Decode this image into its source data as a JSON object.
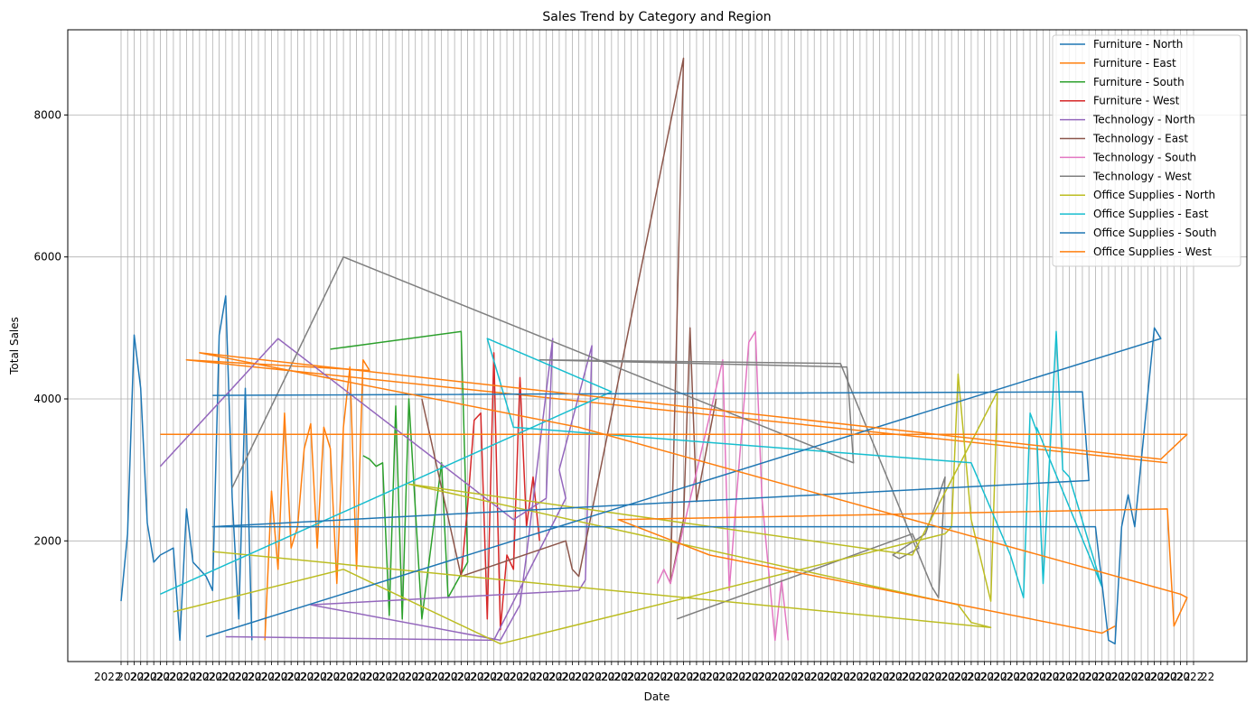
{
  "chart_data": {
    "type": "line",
    "title": "Sales Trend by Category and Region",
    "xlabel": "Date",
    "ylabel": "Total Sales",
    "x_axis": "categorical dates, roughly 165 distinct dates; tick labels overlap and are illegible",
    "x_index_range": [
      0,
      164
    ],
    "ylim": [
      300,
      9200
    ],
    "yticks": [
      2000,
      4000,
      6000,
      8000
    ],
    "grid": true,
    "legend_position": "top-right",
    "legend": [
      "Furniture - North",
      "Furniture - East",
      "Furniture - South",
      "Furniture - West",
      "Technology - North",
      "Technology - East",
      "Technology - South",
      "Technology - West",
      "Office Supplies - North",
      "Office Supplies - East",
      "Office Supplies - South",
      "Office Supplies - West"
    ],
    "x_tick_fragments": [
      "2022",
      "22"
    ],
    "series": [
      {
        "name": "Furniture - North",
        "color": "#1f77b4",
        "points": [
          [
            0,
            1150
          ],
          [
            1,
            2100
          ],
          [
            2,
            4900
          ],
          [
            3,
            4150
          ],
          [
            4,
            2250
          ],
          [
            5,
            1700
          ],
          [
            6,
            1800
          ],
          [
            7,
            1850
          ],
          [
            8,
            1900
          ],
          [
            9,
            600
          ],
          [
            10,
            2450
          ],
          [
            11,
            1700
          ],
          [
            12,
            1600
          ],
          [
            13,
            1500
          ],
          [
            14,
            1300
          ],
          [
            15,
            4900
          ],
          [
            16,
            5450
          ],
          [
            17,
            2600
          ],
          [
            18,
            900
          ],
          [
            19,
            4150
          ],
          [
            20,
            600
          ]
        ]
      },
      {
        "name": "Furniture - East",
        "color": "#ff7f0e",
        "points": [
          [
            22,
            600
          ],
          [
            23,
            2700
          ],
          [
            24,
            1600
          ],
          [
            25,
            3800
          ],
          [
            26,
            1900
          ],
          [
            27,
            2200
          ],
          [
            28,
            3300
          ],
          [
            29,
            3650
          ],
          [
            30,
            1900
          ],
          [
            31,
            3600
          ],
          [
            32,
            3300
          ],
          [
            33,
            1400
          ],
          [
            34,
            3600
          ],
          [
            35,
            4450
          ],
          [
            36,
            1600
          ],
          [
            37,
            4550
          ],
          [
            38,
            4400
          ],
          [
            10,
            4550
          ],
          [
            160,
            3100
          ]
        ]
      },
      {
        "name": "Furniture - South",
        "color": "#2ca02c",
        "points": [
          [
            32,
            4700
          ],
          [
            52,
            4950
          ],
          [
            53,
            1700
          ],
          [
            50,
            1200
          ],
          [
            49,
            3100
          ],
          [
            46,
            900
          ],
          [
            44,
            4000
          ],
          [
            43,
            900
          ],
          [
            42,
            3900
          ],
          [
            41,
            950
          ],
          [
            40,
            3100
          ],
          [
            39,
            3050
          ],
          [
            38,
            3150
          ],
          [
            37,
            3200
          ]
        ]
      },
      {
        "name": "Furniture - West",
        "color": "#d62728",
        "points": [
          [
            52,
            1500
          ],
          [
            53,
            2500
          ],
          [
            54,
            3700
          ],
          [
            55,
            3800
          ],
          [
            56,
            900
          ],
          [
            57,
            4650
          ],
          [
            58,
            750
          ],
          [
            59,
            1800
          ],
          [
            60,
            1600
          ],
          [
            61,
            4300
          ],
          [
            62,
            2200
          ],
          [
            63,
            2900
          ],
          [
            64,
            2000
          ]
        ]
      },
      {
        "name": "Technology - North",
        "color": "#9467bd",
        "points": [
          [
            6,
            3050
          ],
          [
            24,
            4850
          ],
          [
            60,
            2300
          ],
          [
            65,
            2600
          ],
          [
            66,
            4850
          ],
          [
            62,
            1800
          ],
          [
            61,
            1100
          ],
          [
            58,
            600
          ],
          [
            29,
            1100
          ],
          [
            70,
            1300
          ],
          [
            71,
            1450
          ],
          [
            72,
            4750
          ],
          [
            67,
            3000
          ],
          [
            68,
            2600
          ],
          [
            57,
            600
          ],
          [
            16,
            650
          ]
        ]
      },
      {
        "name": "Technology - East",
        "color": "#8c564b",
        "points": [
          [
            46,
            4000
          ],
          [
            52,
            1500
          ],
          [
            68,
            2000
          ],
          [
            69,
            1600
          ],
          [
            70,
            1500
          ],
          [
            86,
            8800
          ],
          [
            84,
            1400
          ],
          [
            86,
            2300
          ],
          [
            87,
            5000
          ],
          [
            88,
            2550
          ],
          [
            91,
            4000
          ]
        ]
      },
      {
        "name": "Technology - South",
        "color": "#e377c2",
        "points": [
          [
            82,
            1400
          ],
          [
            83,
            1600
          ],
          [
            84,
            1400
          ],
          [
            92,
            4550
          ],
          [
            93,
            1300
          ],
          [
            94,
            2500
          ],
          [
            96,
            4800
          ],
          [
            97,
            4950
          ],
          [
            98,
            2600
          ],
          [
            100,
            600
          ],
          [
            101,
            1450
          ],
          [
            102,
            600
          ]
        ]
      },
      {
        "name": "Technology - West",
        "color": "#7f7f7f",
        "points": [
          [
            17,
            2750
          ],
          [
            34,
            6000
          ],
          [
            112,
            3100
          ],
          [
            111,
            4450
          ],
          [
            64,
            4550
          ],
          [
            110,
            4500
          ],
          [
            124,
            1350
          ],
          [
            125,
            1200
          ],
          [
            126,
            2900
          ],
          [
            123,
            2100
          ],
          [
            118,
            1800
          ],
          [
            119,
            1750
          ],
          [
            122,
            1900
          ],
          [
            121,
            2100
          ],
          [
            85,
            900
          ]
        ]
      },
      {
        "name": "Office Supplies - North",
        "color": "#bcbd22",
        "points": [
          [
            8,
            1000
          ],
          [
            34,
            1600
          ],
          [
            58,
            550
          ],
          [
            126,
            2100
          ],
          [
            127,
            2200
          ],
          [
            128,
            4350
          ],
          [
            130,
            2300
          ],
          [
            133,
            1150
          ],
          [
            134,
            4100
          ],
          [
            121,
            1800
          ],
          [
            44,
            2800
          ],
          [
            128,
            1100
          ],
          [
            130,
            850
          ],
          [
            133,
            780
          ],
          [
            14,
            1850
          ]
        ]
      },
      {
        "name": "Office Supplies - East",
        "color": "#17becf",
        "points": [
          [
            6,
            1250
          ],
          [
            75,
            4100
          ],
          [
            56,
            4850
          ],
          [
            60,
            3600
          ],
          [
            130,
            3100
          ],
          [
            136,
            1800
          ],
          [
            138,
            1200
          ],
          [
            139,
            3800
          ],
          [
            140,
            3550
          ],
          [
            141,
            1400
          ],
          [
            143,
            4950
          ],
          [
            144,
            3000
          ],
          [
            145,
            2900
          ],
          [
            150,
            1350
          ],
          [
            140,
            3600
          ]
        ]
      },
      {
        "name": "Office Supplies - South",
        "color": "#1f77b4",
        "points": [
          [
            14,
            4050
          ],
          [
            147,
            4100
          ],
          [
            148,
            2850
          ],
          [
            14,
            2200
          ],
          [
            149,
            2200
          ],
          [
            151,
            600
          ],
          [
            152,
            550
          ],
          [
            153,
            2200
          ],
          [
            154,
            2650
          ],
          [
            155,
            2200
          ],
          [
            158,
            5000
          ],
          [
            159,
            4850
          ],
          [
            13,
            650
          ]
        ]
      },
      {
        "name": "Office Supplies - West",
        "color": "#ff7f0e",
        "points": [
          [
            6,
            3500
          ],
          [
            163,
            3500
          ],
          [
            159,
            3150
          ],
          [
            12,
            4650
          ],
          [
            70,
            3600
          ],
          [
            162,
            1250
          ],
          [
            163,
            1200
          ],
          [
            161,
            800
          ],
          [
            160,
            2450
          ],
          [
            76,
            2300
          ],
          [
            90,
            1800
          ],
          [
            150,
            700
          ],
          [
            152,
            800
          ]
        ]
      }
    ]
  }
}
